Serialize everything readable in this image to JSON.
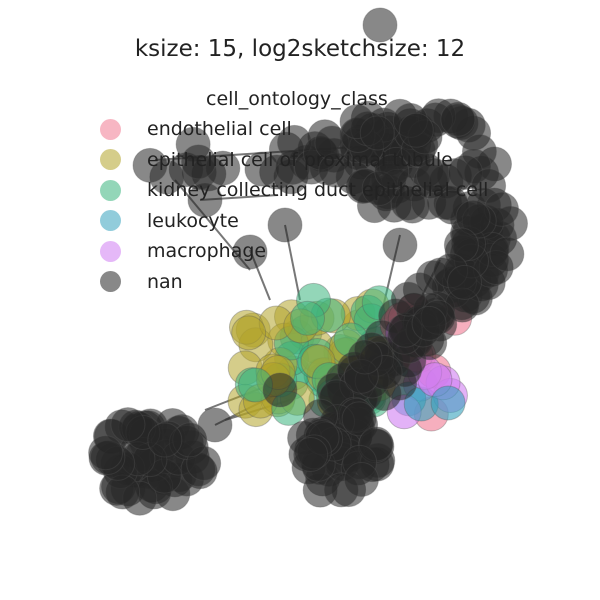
{
  "title": "ksize: 15, log2sketchsize: 12",
  "legend": {
    "title": "cell_ontology_class",
    "items": [
      {
        "label": "endothelial cell",
        "color": "#f07a92"
      },
      {
        "label": "epithelial cell of proximal tubule",
        "color": "#b3a42a"
      },
      {
        "label": "kidney collecting duct epithelial cell",
        "color": "#3bb57e"
      },
      {
        "label": "leukocyte",
        "color": "#36a2bd"
      },
      {
        "label": "macrophage",
        "color": "#d07ef2"
      },
      {
        "label": "nan",
        "color": "#262626"
      }
    ]
  },
  "colors": {
    "node_fill": "#262626",
    "edge": "#555555"
  }
}
